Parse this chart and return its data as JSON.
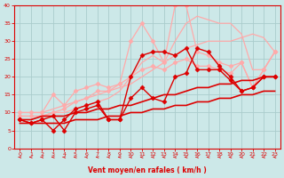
{
  "xlabel": "Vent moyen/en rafales ( km/h )",
  "x": [
    0,
    1,
    2,
    3,
    4,
    5,
    6,
    7,
    8,
    9,
    10,
    11,
    12,
    13,
    14,
    15,
    16,
    17,
    18,
    19,
    20,
    21,
    22,
    23
  ],
  "ylim": [
    0,
    40
  ],
  "xlim": [
    -0.5,
    23.5
  ],
  "yticks": [
    0,
    5,
    10,
    15,
    20,
    25,
    30,
    35,
    40
  ],
  "xticks": [
    0,
    1,
    2,
    3,
    4,
    5,
    6,
    7,
    8,
    9,
    10,
    11,
    12,
    13,
    14,
    15,
    16,
    17,
    18,
    19,
    20,
    21,
    22,
    23
  ],
  "bg_color": "#cce8e8",
  "grid_color": "#aacccc",
  "series": [
    {
      "color": "#ffaaaa",
      "lw": 0.9,
      "marker": null,
      "y": [
        10,
        10,
        10,
        11,
        12,
        13,
        14,
        15,
        16,
        17,
        18,
        20,
        22,
        24,
        26,
        28,
        29,
        30,
        30,
        30,
        31,
        32,
        31,
        27
      ]
    },
    {
      "color": "#ffaaaa",
      "lw": 0.9,
      "marker": null,
      "y": [
        9,
        9,
        9,
        10,
        10,
        11,
        12,
        13,
        14,
        16,
        20,
        24,
        26,
        24,
        30,
        35,
        37,
        36,
        35,
        35,
        32,
        22,
        22,
        27
      ]
    },
    {
      "color": "#ffaaaa",
      "lw": 0.9,
      "marker": "D",
      "markersize": 2.5,
      "y": [
        10,
        10,
        10,
        15,
        12,
        16,
        17,
        18,
        17,
        18,
        20,
        22,
        23,
        22,
        24,
        25,
        23,
        23,
        22,
        21,
        24,
        17,
        22,
        27
      ]
    },
    {
      "color": "#ffaaaa",
      "lw": 0.9,
      "marker": "D",
      "markersize": 2.5,
      "y": [
        9,
        9,
        9,
        10,
        11,
        13,
        14,
        16,
        16,
        18,
        30,
        35,
        30,
        24,
        40,
        40,
        27,
        26,
        24,
        23,
        24,
        17,
        22,
        27
      ]
    },
    {
      "color": "#dd0000",
      "lw": 1.0,
      "marker": "D",
      "markersize": 2.5,
      "y": [
        8,
        7,
        8,
        9,
        5,
        10,
        11,
        12,
        8,
        8,
        14,
        17,
        14,
        13,
        20,
        21,
        28,
        27,
        23,
        20,
        16,
        17,
        20,
        20
      ]
    },
    {
      "color": "#dd0000",
      "lw": 1.0,
      "marker": "D",
      "markersize": 2.5,
      "y": [
        8,
        7,
        8,
        5,
        8,
        11,
        12,
        13,
        8,
        8,
        20,
        26,
        27,
        27,
        26,
        28,
        22,
        22,
        22,
        19,
        16,
        17,
        20,
        20
      ]
    },
    {
      "color": "#dd0000",
      "lw": 1.2,
      "marker": null,
      "y": [
        8,
        8,
        9,
        9,
        9,
        10,
        10,
        11,
        11,
        12,
        12,
        13,
        14,
        15,
        15,
        16,
        17,
        17,
        18,
        18,
        19,
        19,
        20,
        20
      ]
    },
    {
      "color": "#dd0000",
      "lw": 1.2,
      "marker": null,
      "y": [
        7,
        7,
        7,
        7,
        7,
        8,
        8,
        8,
        9,
        9,
        10,
        10,
        11,
        11,
        12,
        12,
        13,
        13,
        14,
        14,
        15,
        15,
        16,
        16
      ]
    }
  ],
  "arrow_color": "#dd0000",
  "tick_color": "#dd0000",
  "label_color": "#dd0000"
}
